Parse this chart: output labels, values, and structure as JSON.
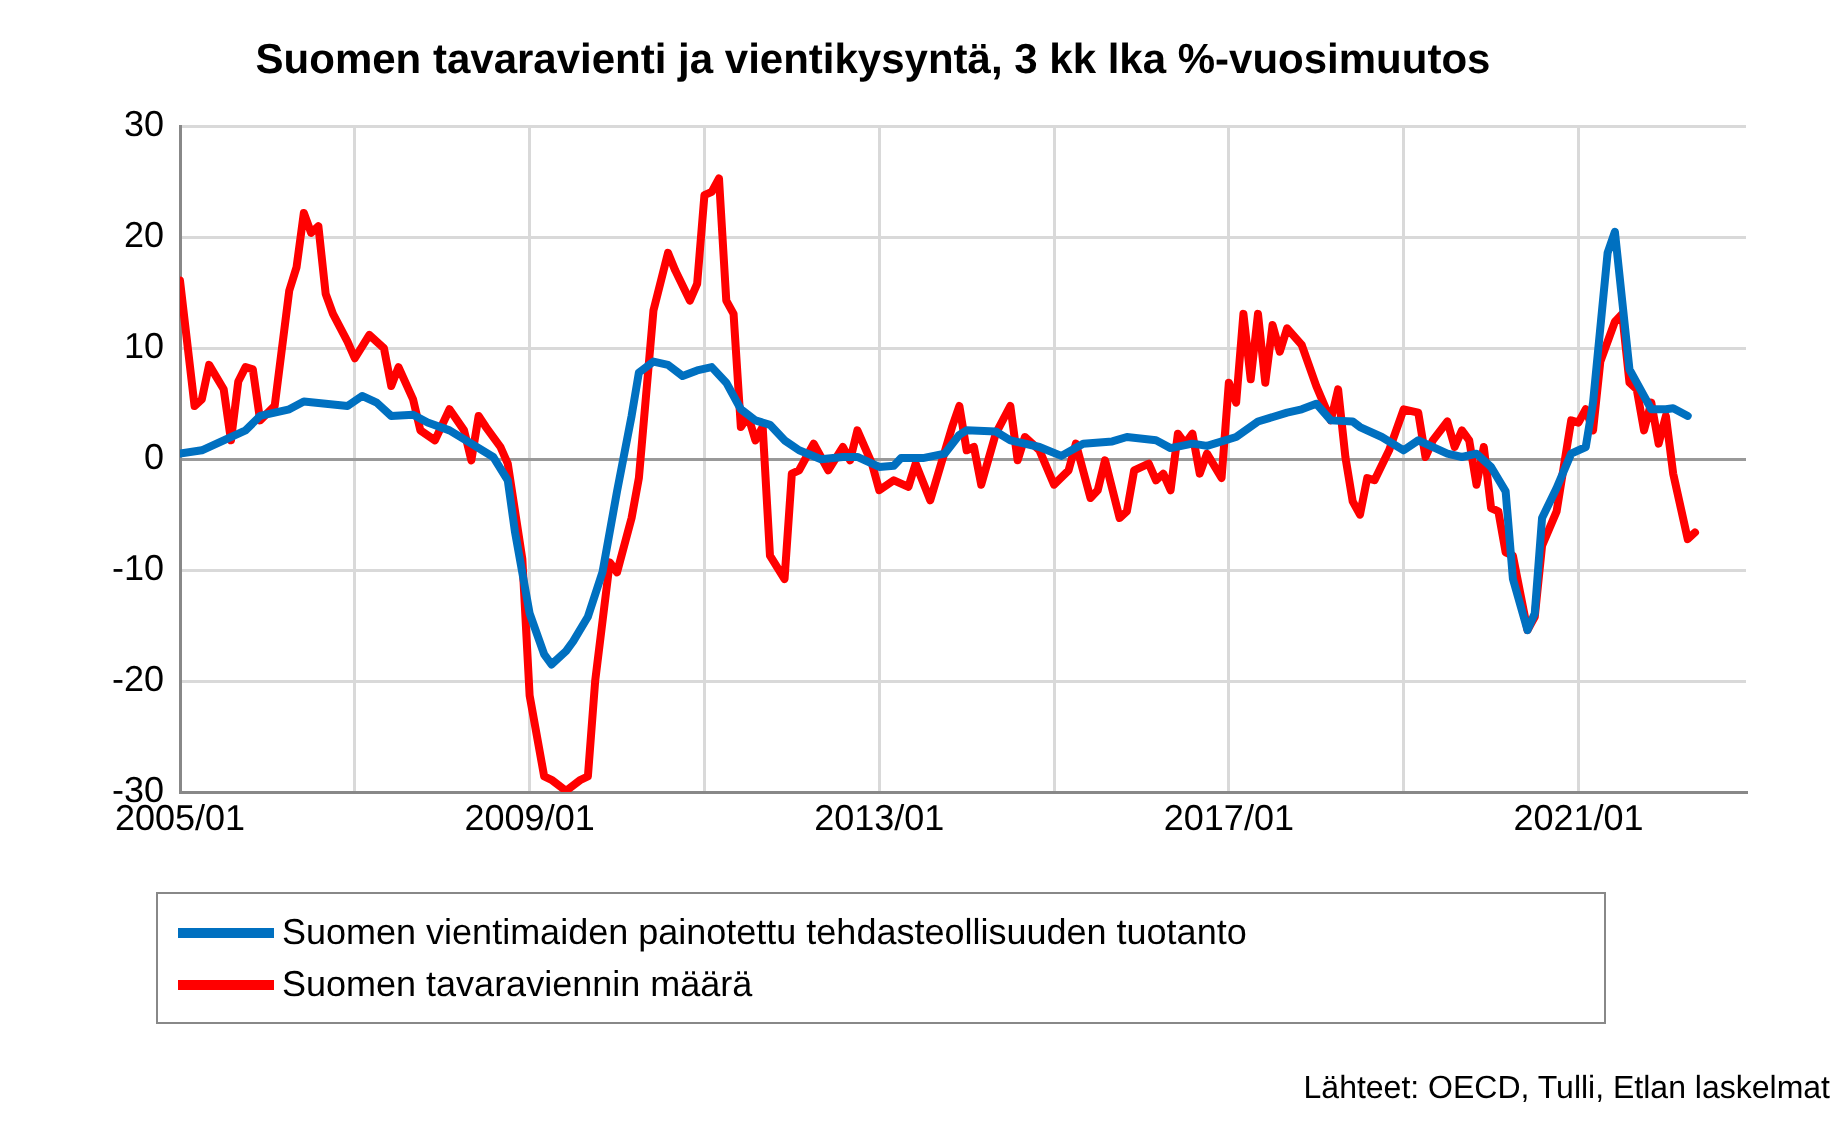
{
  "chart_data": {
    "type": "line",
    "title": "Suomen tavaravienti ja vientikysyntä, 3 kk lka %-vuosimuutos",
    "xlim": [
      "2005-01",
      "2022-12"
    ],
    "xticks": [
      {
        "value": "2005-01",
        "label": "2005/01"
      },
      {
        "value": "2007-01",
        "label": null
      },
      {
        "value": "2009-01",
        "label": "2009/01"
      },
      {
        "value": "2011-01",
        "label": null
      },
      {
        "value": "2013-01",
        "label": "2013/01"
      },
      {
        "value": "2015-01",
        "label": null
      },
      {
        "value": "2017-01",
        "label": "2017/01"
      },
      {
        "value": "2019-01",
        "label": null
      },
      {
        "value": "2021-01",
        "label": "2021/01"
      }
    ],
    "ylim": [
      -30,
      30
    ],
    "yticks": [
      -30,
      -20,
      -10,
      0,
      10,
      20,
      30
    ],
    "grid": true,
    "legend": "bottom",
    "marker": "none",
    "line_style": "solid",
    "annotations": [
      "Lähteet: OECD, Tulli, Etlan laskelmat"
    ],
    "series": [
      {
        "name": "Suomen vientimaiden painotettu tehdasteollisuuden tuotanto",
        "color": "#0070c0",
        "x": [
          "2005-01",
          "2005-04",
          "2005-07",
          "2005-10",
          "2005-12",
          "2006-04",
          "2006-06",
          "2006-09",
          "2006-12",
          "2007-02",
          "2007-04",
          "2007-06",
          "2007-09",
          "2007-11",
          "2008-02",
          "2008-05",
          "2008-08",
          "2008-10",
          "2008-11",
          "2009-01",
          "2009-03",
          "2009-04",
          "2009-06",
          "2009-07",
          "2009-09",
          "2009-11",
          "2010-01",
          "2010-03",
          "2010-04",
          "2010-06",
          "2010-08",
          "2010-10",
          "2010-12",
          "2011-02",
          "2011-04",
          "2011-06",
          "2011-08",
          "2011-10",
          "2011-12",
          "2012-02",
          "2012-05",
          "2012-08",
          "2012-10",
          "2013-01",
          "2013-03",
          "2013-04",
          "2013-07",
          "2013-10",
          "2013-12",
          "2014-01",
          "2014-05",
          "2014-07",
          "2014-11",
          "2015-02",
          "2015-05",
          "2015-09",
          "2015-11",
          "2016-03",
          "2016-05",
          "2016-08",
          "2016-10",
          "2017-02",
          "2017-05",
          "2017-09",
          "2017-11",
          "2018-01",
          "2018-03",
          "2018-06",
          "2018-07",
          "2018-10",
          "2019-01",
          "2019-03",
          "2019-07",
          "2019-09",
          "2019-11",
          "2020-01",
          "2020-03",
          "2020-04",
          "2020-06",
          "2020-07",
          "2020-08",
          "2020-10",
          "2020-12",
          "2021-02",
          "2021-03",
          "2021-05",
          "2021-06",
          "2021-07",
          "2021-08",
          "2021-11",
          "2022-01",
          "2022-02",
          "2022-04"
        ],
        "values": [
          0.5,
          0.8,
          1.7,
          2.6,
          3.9,
          4.5,
          5.2,
          5.0,
          4.8,
          5.7,
          5.1,
          3.9,
          4.0,
          3.3,
          2.6,
          1.4,
          0.2,
          -1.9,
          -6.6,
          -13.9,
          -17.6,
          -18.5,
          -17.3,
          -16.4,
          -14.2,
          -10.2,
          -2.9,
          3.9,
          7.8,
          8.8,
          8.5,
          7.5,
          8.0,
          8.3,
          6.9,
          4.5,
          3.5,
          3.1,
          1.7,
          0.8,
          0.0,
          0.2,
          0.2,
          -0.7,
          -0.6,
          0.1,
          0.1,
          0.5,
          2.2,
          2.6,
          2.5,
          1.7,
          1.1,
          0.3,
          1.4,
          1.6,
          2.0,
          1.7,
          1.0,
          1.4,
          1.2,
          2.0,
          3.4,
          4.2,
          4.5,
          5.0,
          3.5,
          3.4,
          2.9,
          2.0,
          0.8,
          1.7,
          0.5,
          0.2,
          0.5,
          -0.7,
          -2.9,
          -10.8,
          -15.4,
          -13.9,
          -5.3,
          -2.6,
          0.5,
          1.1,
          5.1,
          18.6,
          20.5,
          14.3,
          8.1,
          4.5,
          4.5,
          4.6,
          3.9
        ]
      },
      {
        "name": "Suomen tavaraviennin määrä",
        "color": "#ff0000",
        "x": [
          "2005-01",
          "2005-03",
          "2005-04",
          "2005-05",
          "2005-07",
          "2005-08",
          "2005-09",
          "2005-10",
          "2005-11",
          "2005-12",
          "2006-02",
          "2006-04",
          "2006-05",
          "2006-06",
          "2006-07",
          "2006-08",
          "2006-09",
          "2006-10",
          "2006-12",
          "2007-01",
          "2007-03",
          "2007-05",
          "2007-06",
          "2007-07",
          "2007-09",
          "2007-10",
          "2007-12",
          "2008-02",
          "2008-04",
          "2008-05",
          "2008-06",
          "2008-07",
          "2008-09",
          "2008-10",
          "2008-12",
          "2009-01",
          "2009-03",
          "2009-04",
          "2009-06",
          "2009-08",
          "2009-09",
          "2009-10",
          "2009-12",
          "2010-01",
          "2010-03",
          "2010-04",
          "2010-06",
          "2010-08",
          "2010-09",
          "2010-11",
          "2010-12",
          "2011-01",
          "2011-02",
          "2011-03",
          "2011-04",
          "2011-05",
          "2011-06",
          "2011-07",
          "2011-08",
          "2011-09",
          "2011-10",
          "2011-12",
          "2012-01",
          "2012-02",
          "2012-04",
          "2012-06",
          "2012-08",
          "2012-09",
          "2012-10",
          "2012-12",
          "2013-01",
          "2013-03",
          "2013-05",
          "2013-06",
          "2013-08",
          "2013-11",
          "2013-12",
          "2014-01",
          "2014-02",
          "2014-03",
          "2014-05",
          "2014-07",
          "2014-08",
          "2014-09",
          "2014-11",
          "2015-01",
          "2015-03",
          "2015-04",
          "2015-06",
          "2015-07",
          "2015-08",
          "2015-10",
          "2015-11",
          "2015-12",
          "2016-02",
          "2016-03",
          "2016-04",
          "2016-05",
          "2016-06",
          "2016-07",
          "2016-08",
          "2016-09",
          "2016-10",
          "2016-12",
          "2017-01",
          "2017-02",
          "2017-03",
          "2017-04",
          "2017-05",
          "2017-06",
          "2017-07",
          "2017-08",
          "2017-09",
          "2017-11",
          "2018-01",
          "2018-03",
          "2018-04",
          "2018-05",
          "2018-06",
          "2018-07",
          "2018-08",
          "2018-09",
          "2018-11",
          "2019-01",
          "2019-03",
          "2019-04",
          "2019-05",
          "2019-07",
          "2019-08",
          "2019-09",
          "2019-10",
          "2019-11",
          "2019-12",
          "2020-01",
          "2020-02",
          "2020-03",
          "2020-04",
          "2020-06",
          "2020-07",
          "2020-08",
          "2020-10",
          "2020-12",
          "2021-01",
          "2021-02",
          "2021-03",
          "2021-04",
          "2021-06",
          "2021-07",
          "2021-08",
          "2021-09",
          "2021-10",
          "2021-11",
          "2021-12",
          "2022-01",
          "2022-02",
          "2022-04",
          "2022-05"
        ],
        "values": [
          16.1,
          4.8,
          5.4,
          8.5,
          6.3,
          1.7,
          7.0,
          8.3,
          8.1,
          3.5,
          4.8,
          15.2,
          17.3,
          22.2,
          20.4,
          21.0,
          14.9,
          13.1,
          10.6,
          9.1,
          11.2,
          10.0,
          6.6,
          8.3,
          5.4,
          2.6,
          1.7,
          4.5,
          2.6,
          -0.1,
          3.9,
          2.9,
          1.1,
          -0.4,
          -9.0,
          -21.3,
          -28.6,
          -28.9,
          -29.9,
          -28.9,
          -28.6,
          -20.0,
          -9.3,
          -10.2,
          -5.3,
          -1.7,
          13.4,
          18.6,
          17.0,
          14.3,
          15.8,
          23.8,
          24.1,
          25.3,
          14.3,
          13.1,
          2.9,
          3.9,
          1.7,
          2.9,
          -8.7,
          -10.8,
          -1.3,
          -1.0,
          1.4,
          -1.0,
          1.1,
          -0.1,
          2.6,
          -0.4,
          -2.8,
          -1.9,
          -2.5,
          -0.4,
          -3.7,
          2.9,
          4.8,
          0.8,
          1.1,
          -2.3,
          2.3,
          4.8,
          -0.1,
          2.0,
          0.8,
          -2.3,
          -1.0,
          1.4,
          -3.5,
          -2.8,
          -0.1,
          -5.3,
          -4.7,
          -1.0,
          -0.4,
          -1.9,
          -1.3,
          -2.8,
          2.3,
          1.4,
          2.3,
          -1.3,
          0.5,
          -1.7,
          6.9,
          5.1,
          13.1,
          7.2,
          13.1,
          6.9,
          12.1,
          9.7,
          11.8,
          10.3,
          6.6,
          3.5,
          6.3,
          0.2,
          -3.8,
          -5.0,
          -1.7,
          -1.9,
          0.8,
          4.5,
          4.2,
          0.2,
          1.7,
          3.4,
          1.1,
          2.6,
          1.7,
          -2.3,
          1.1,
          -4.4,
          -4.7,
          -8.4,
          -8.7,
          -15.4,
          -14.2,
          -7.8,
          -4.7,
          3.5,
          3.3,
          4.5,
          2.6,
          8.8,
          12.4,
          13.1,
          6.9,
          6.3,
          2.6,
          5.1,
          1.4,
          3.9,
          -1.3,
          -7.2,
          -6.6
        ]
      }
    ]
  }
}
